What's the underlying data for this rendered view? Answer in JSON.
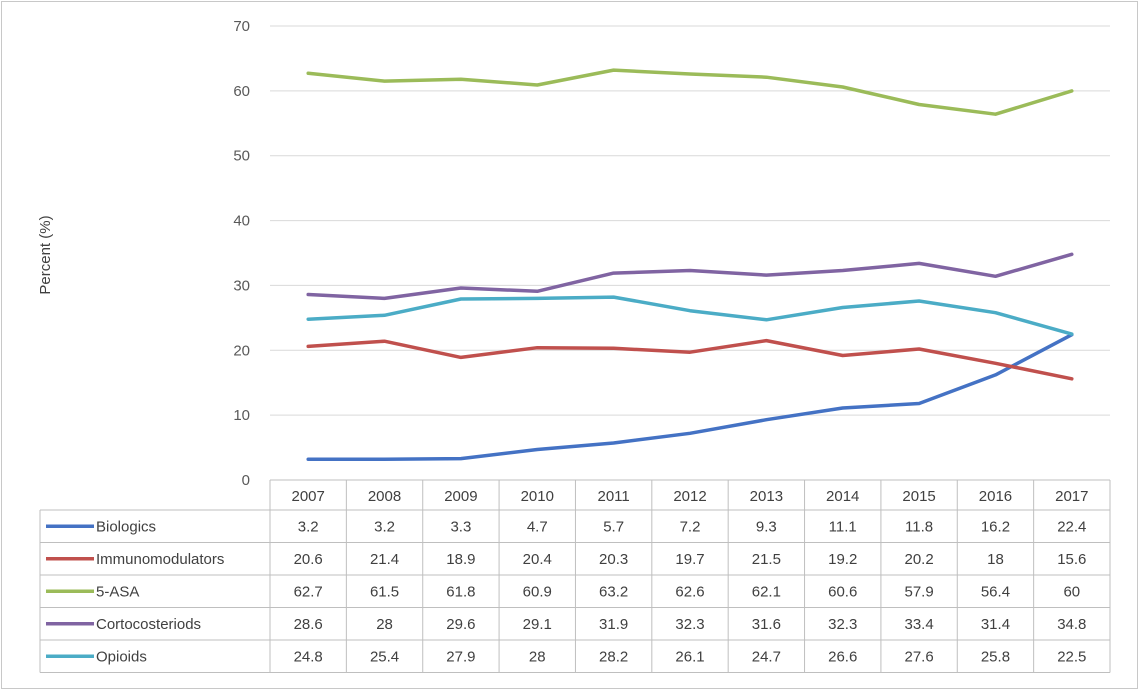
{
  "chart_data": {
    "type": "line",
    "title": "",
    "xlabel": "",
    "ylabel": "Percent (%)",
    "ylim": [
      0,
      70
    ],
    "yticks": [
      0,
      10,
      20,
      30,
      40,
      50,
      60,
      70
    ],
    "grid": true,
    "legend": "data-table",
    "categories": [
      "2007",
      "2008",
      "2009",
      "2010",
      "2011",
      "2012",
      "2013",
      "2014",
      "2015",
      "2016",
      "2017"
    ],
    "series": [
      {
        "name": "Biologics",
        "color": "#4472c4",
        "values": [
          3.2,
          3.2,
          3.3,
          4.7,
          5.7,
          7.2,
          9.3,
          11.1,
          11.8,
          16.2,
          22.4
        ]
      },
      {
        "name": "Immunomodulators",
        "color": "#c0504d",
        "values": [
          20.6,
          21.4,
          18.9,
          20.4,
          20.3,
          19.7,
          21.5,
          19.2,
          20.2,
          18,
          15.6
        ]
      },
      {
        "name": "5-ASA",
        "color": "#9bbb59",
        "values": [
          62.7,
          61.5,
          61.8,
          60.9,
          63.2,
          62.6,
          62.1,
          60.6,
          57.9,
          56.4,
          60
        ]
      },
      {
        "name": "Cortocosteriods",
        "color": "#8064a2",
        "values": [
          28.6,
          28,
          29.6,
          29.1,
          31.9,
          32.3,
          31.6,
          32.3,
          33.4,
          31.4,
          34.8
        ]
      },
      {
        "name": "Opioids",
        "color": "#4bacc6",
        "values": [
          24.8,
          25.4,
          27.9,
          28,
          28.2,
          26.1,
          24.7,
          26.6,
          27.6,
          25.8,
          22.5
        ]
      }
    ]
  }
}
